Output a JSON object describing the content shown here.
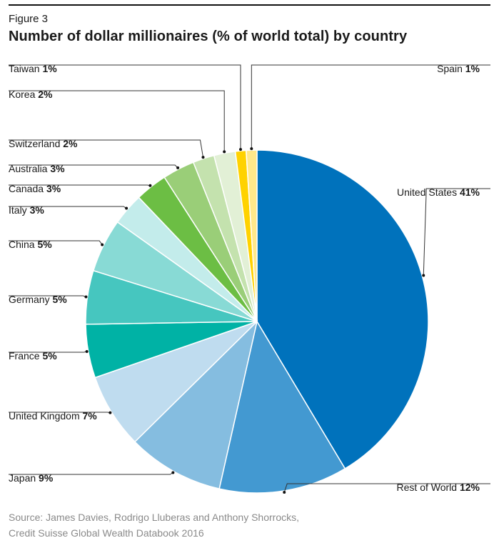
{
  "figure_label": "Figure 3",
  "title": "Number of dollar millionaires (% of world total) by country",
  "source_lines": [
    "Source: James Davies, Rodrigo Lluberas and Anthony Shorrocks,",
    "Credit Suisse Global Wealth Databook 2016"
  ],
  "chart_data": {
    "type": "pie",
    "start_angle_deg": 0,
    "direction": "clockwise",
    "slices": [
      {
        "label": "United States",
        "value": 41,
        "pct_text": "41%",
        "color": "#0072bc"
      },
      {
        "label": "Rest of World",
        "value": 12,
        "pct_text": "12%",
        "color": "#4399d1"
      },
      {
        "label": "Japan",
        "value": 9,
        "pct_text": "9%",
        "color": "#85bde0"
      },
      {
        "label": "United Kingdom",
        "value": 7,
        "pct_text": "7%",
        "color": "#bfdcef"
      },
      {
        "label": "France",
        "value": 5,
        "pct_text": "5%",
        "color": "#00b2a5"
      },
      {
        "label": "Germany",
        "value": 5,
        "pct_text": "5%",
        "color": "#46c6bf"
      },
      {
        "label": "China",
        "value": 5,
        "pct_text": "5%",
        "color": "#88dad5"
      },
      {
        "label": "Italy",
        "value": 3,
        "pct_text": "3%",
        "color": "#c3eceb"
      },
      {
        "label": "Canada",
        "value": 3,
        "pct_text": "3%",
        "color": "#6cbe44"
      },
      {
        "label": "Australia",
        "value": 3,
        "pct_text": "3%",
        "color": "#9ace78"
      },
      {
        "label": "Switzerland",
        "value": 2,
        "pct_text": "2%",
        "color": "#c4e2ae"
      },
      {
        "label": "Korea",
        "value": 2,
        "pct_text": "2%",
        "color": "#e2f0d6"
      },
      {
        "label": "Taiwan",
        "value": 1,
        "pct_text": "1%",
        "color": "#ffd200"
      },
      {
        "label": "Spain",
        "value": 1,
        "pct_text": "1%",
        "color": "#ffe88a"
      }
    ]
  }
}
